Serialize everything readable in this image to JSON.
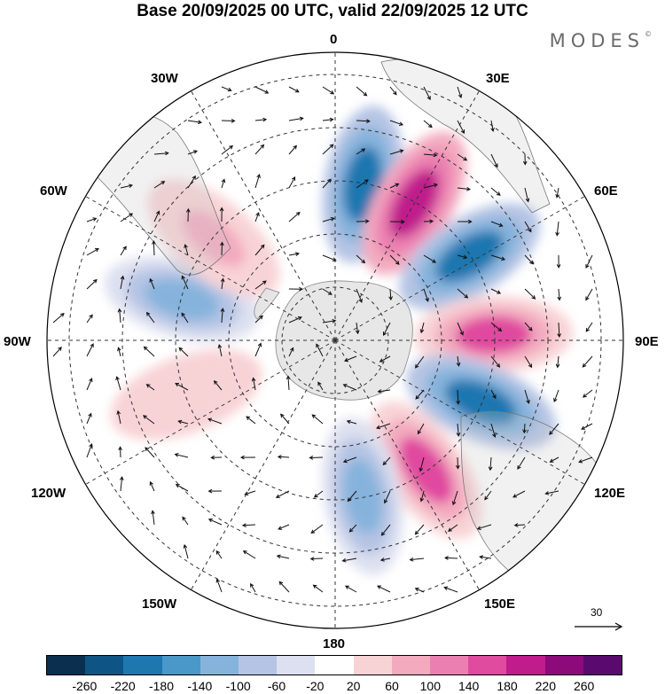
{
  "title": "Base 20/09/2025 00 UTC, valid 22/09/2025 12 UTC",
  "logo": "MODES",
  "logo_mark": "©",
  "lon_labels": {
    "l0": "0",
    "l30e": "30E",
    "l60e": "60E",
    "l90e": "90E",
    "l120e": "120E",
    "l150e": "150E",
    "l180": "180",
    "l150w": "150W",
    "l120w": "120W",
    "l90w": "90W",
    "l60w": "60W",
    "l30w": "30W"
  },
  "reference_vector": {
    "value": "30"
  },
  "colorbar": {
    "colors": [
      "#0a2f4f",
      "#0e5585",
      "#1f77b0",
      "#4a98c9",
      "#86b3dc",
      "#b5c4e4",
      "#dde0f0",
      "#ffffff",
      "#f8d3d6",
      "#f3aabf",
      "#eb7fb1",
      "#e04a9f",
      "#c01c8c",
      "#8c0a7a",
      "#5a0a6e"
    ],
    "tick_labels": [
      "-260",
      "-220",
      "-180",
      "-140",
      "-100",
      "-60",
      "-20",
      "20",
      "60",
      "100",
      "140",
      "180",
      "220",
      "260"
    ]
  },
  "chart_data": {
    "type": "heatmap",
    "projection": "south polar stereographic",
    "field": "anomaly (shaded) with wind vectors",
    "anomaly_centers": [
      {
        "lon_deg": 10,
        "sign": "negative",
        "approx_value": -180
      },
      {
        "lon_deg": 30,
        "sign": "positive",
        "approx_value": 200
      },
      {
        "lon_deg": 58,
        "sign": "negative",
        "approx_value": -180
      },
      {
        "lon_deg": 88,
        "sign": "positive",
        "approx_value": 150
      },
      {
        "lon_deg": 113,
        "sign": "negative",
        "approx_value": -180
      },
      {
        "lon_deg": 145,
        "sign": "positive",
        "approx_value": 150
      },
      {
        "lon_deg": 170,
        "sign": "negative",
        "approx_value": -100
      },
      {
        "lon_deg": 285,
        "sign": "negative",
        "approx_value": -120
      },
      {
        "lon_deg": 310,
        "sign": "positive",
        "approx_value": 100
      },
      {
        "lon_deg": 250,
        "sign": "positive",
        "approx_value": 60
      }
    ],
    "contour_levels": [
      -260,
      -220,
      -180,
      -140,
      -100,
      -60,
      -20,
      20,
      60,
      100,
      140,
      180,
      220,
      260
    ]
  }
}
